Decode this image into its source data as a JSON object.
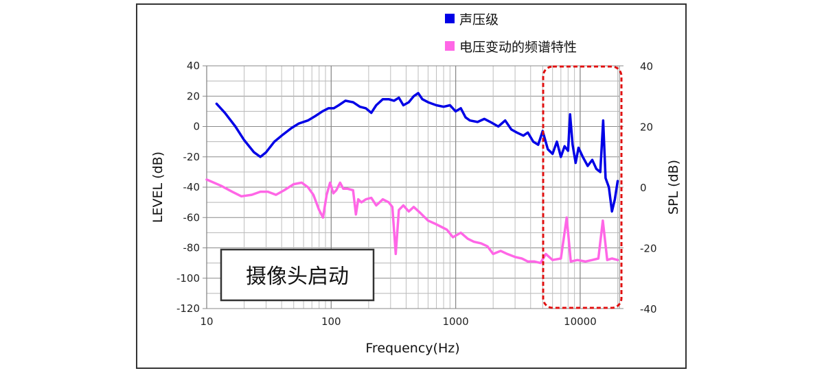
{
  "chart_data": {
    "type": "line",
    "title": "",
    "xlabel": "Frequency (Hz)",
    "ylabel": "LEVEL (dB)",
    "ylabel_right": "SPL (dB)",
    "x_scale": "log",
    "xlim": [
      10,
      20000
    ],
    "ylim": [
      -120,
      40
    ],
    "ylim_right": [
      -40,
      40
    ],
    "grid": true,
    "x_ticks": [
      "10",
      "100",
      "1000",
      "10000"
    ],
    "y_ticks": [
      "40",
      "20",
      "0",
      "-20",
      "-40",
      "-60",
      "-80",
      "-100",
      "-120"
    ],
    "y_ticks_right": [
      "40",
      "20",
      "0",
      "-20",
      "-40"
    ],
    "legend_position": "top-right",
    "annotation_box": "摄像头启动",
    "highlight_region": {
      "x_from": 5000,
      "x_to": 20000,
      "style": "red dashed rounded rectangle"
    },
    "series": [
      {
        "name": "声压级",
        "color": "#0000e6",
        "axis": "left",
        "points": [
          [
            12,
            15
          ],
          [
            14,
            9
          ],
          [
            17,
            0
          ],
          [
            20,
            -9
          ],
          [
            24,
            -17
          ],
          [
            27,
            -20
          ],
          [
            30,
            -17
          ],
          [
            35,
            -10
          ],
          [
            40,
            -6
          ],
          [
            48,
            -1
          ],
          [
            55,
            2
          ],
          [
            65,
            4
          ],
          [
            75,
            7
          ],
          [
            85,
            10
          ],
          [
            95,
            12
          ],
          [
            105,
            12
          ],
          [
            115,
            14
          ],
          [
            130,
            17
          ],
          [
            150,
            16
          ],
          [
            170,
            13
          ],
          [
            190,
            12
          ],
          [
            210,
            9
          ],
          [
            230,
            14
          ],
          [
            260,
            18
          ],
          [
            290,
            18
          ],
          [
            320,
            17
          ],
          [
            350,
            19
          ],
          [
            380,
            14
          ],
          [
            420,
            16
          ],
          [
            460,
            20
          ],
          [
            500,
            22
          ],
          [
            540,
            18
          ],
          [
            600,
            16
          ],
          [
            700,
            14
          ],
          [
            800,
            13
          ],
          [
            900,
            14
          ],
          [
            1000,
            10
          ],
          [
            1100,
            12
          ],
          [
            1200,
            6
          ],
          [
            1300,
            4
          ],
          [
            1500,
            3
          ],
          [
            1700,
            5
          ],
          [
            1900,
            3
          ],
          [
            2200,
            0
          ],
          [
            2500,
            4
          ],
          [
            2800,
            -2
          ],
          [
            3100,
            -4
          ],
          [
            3500,
            -6
          ],
          [
            3800,
            -4
          ],
          [
            4200,
            -10
          ],
          [
            4600,
            -12
          ],
          [
            5000,
            -3
          ],
          [
            5500,
            -15
          ],
          [
            6000,
            -18
          ],
          [
            6500,
            -10
          ],
          [
            7000,
            -20
          ],
          [
            7500,
            -13
          ],
          [
            8000,
            -16
          ],
          [
            8300,
            8
          ],
          [
            8700,
            -12
          ],
          [
            9200,
            -24
          ],
          [
            9700,
            -14
          ],
          [
            10500,
            -20
          ],
          [
            11500,
            -26
          ],
          [
            12500,
            -22
          ],
          [
            13500,
            -28
          ],
          [
            14500,
            -30
          ],
          [
            15300,
            4
          ],
          [
            16000,
            -34
          ],
          [
            17000,
            -40
          ],
          [
            18000,
            -56
          ],
          [
            19000,
            -48
          ],
          [
            20000,
            -36
          ]
        ]
      },
      {
        "name": "电压变动的频谱特性",
        "color": "#ff66e6",
        "axis": "left",
        "points": [
          [
            10,
            -35
          ],
          [
            13,
            -39
          ],
          [
            16,
            -43
          ],
          [
            19,
            -46
          ],
          [
            23,
            -45
          ],
          [
            27,
            -43
          ],
          [
            31,
            -43
          ],
          [
            36,
            -45
          ],
          [
            42,
            -42
          ],
          [
            50,
            -38
          ],
          [
            58,
            -37
          ],
          [
            65,
            -40
          ],
          [
            72,
            -45
          ],
          [
            80,
            -55
          ],
          [
            86,
            -60
          ],
          [
            92,
            -45
          ],
          [
            98,
            -37
          ],
          [
            104,
            -44
          ],
          [
            110,
            -42
          ],
          [
            118,
            -37
          ],
          [
            125,
            -41
          ],
          [
            135,
            -41
          ],
          [
            150,
            -42
          ],
          [
            158,
            -58
          ],
          [
            165,
            -48
          ],
          [
            175,
            -50
          ],
          [
            190,
            -48
          ],
          [
            210,
            -47
          ],
          [
            230,
            -52
          ],
          [
            260,
            -48
          ],
          [
            290,
            -50
          ],
          [
            310,
            -53
          ],
          [
            330,
            -84
          ],
          [
            350,
            -55
          ],
          [
            380,
            -52
          ],
          [
            420,
            -56
          ],
          [
            460,
            -53
          ],
          [
            520,
            -57
          ],
          [
            600,
            -62
          ],
          [
            680,
            -64
          ],
          [
            760,
            -66
          ],
          [
            850,
            -68
          ],
          [
            950,
            -73
          ],
          [
            1100,
            -70
          ],
          [
            1250,
            -74
          ],
          [
            1400,
            -76
          ],
          [
            1600,
            -77
          ],
          [
            1800,
            -79
          ],
          [
            2000,
            -84
          ],
          [
            2300,
            -82
          ],
          [
            2600,
            -84
          ],
          [
            3000,
            -86
          ],
          [
            3400,
            -87
          ],
          [
            3800,
            -89
          ],
          [
            4300,
            -89
          ],
          [
            4800,
            -90
          ],
          [
            5300,
            -84
          ],
          [
            6000,
            -88
          ],
          [
            7000,
            -87
          ],
          [
            7800,
            -60
          ],
          [
            8400,
            -89
          ],
          [
            9500,
            -88
          ],
          [
            11000,
            -89
          ],
          [
            12500,
            -88
          ],
          [
            14000,
            -87
          ],
          [
            15200,
            -62
          ],
          [
            16500,
            -88
          ],
          [
            18000,
            -87
          ],
          [
            20000,
            -88
          ]
        ]
      }
    ]
  },
  "legend": {
    "items": [
      {
        "label": "声压级",
        "color": "#0000e6"
      },
      {
        "label": "电压变动的频谱特性",
        "color": "#ff66e6"
      }
    ]
  },
  "annotation": {
    "text": "摄像头启动"
  },
  "axes": {
    "xlabel": "Frequency(Hz)",
    "ylabel_left": "LEVEL (dB)",
    "ylabel_right": "SPL (dB)"
  }
}
